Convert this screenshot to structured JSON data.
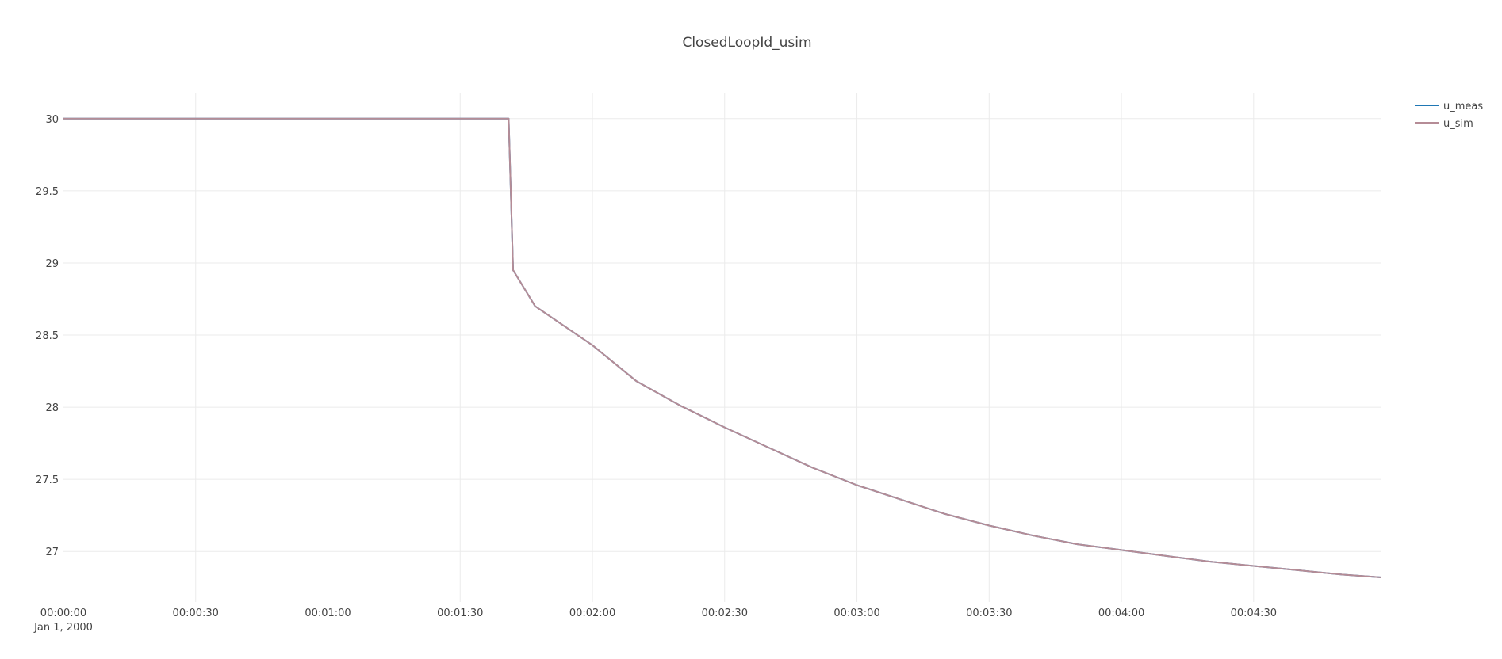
{
  "chart_data": {
    "type": "line",
    "title": "ClosedLoopId_usim",
    "xlabel": "",
    "ylabel": "",
    "x_axis_kind": "time",
    "x_tick_labels": [
      "00:00:00",
      "00:00:30",
      "00:01:00",
      "00:01:30",
      "00:02:00",
      "00:02:30",
      "00:03:00",
      "00:03:30",
      "00:04:00",
      "00:04:30"
    ],
    "x_date_label": "Jan 1, 2000",
    "y_tick_labels": [
      "30",
      "29.5",
      "29",
      "28.5",
      "28",
      "27.5",
      "27"
    ],
    "y_ticks": [
      30,
      29.5,
      29,
      28.5,
      28,
      27.5,
      27
    ],
    "xlim": [
      "00:00:00",
      "00:04:59"
    ],
    "ylim": [
      26.65,
      30.18
    ],
    "grid": true,
    "legend_position": "top-right",
    "x": [
      "00:00:00",
      "00:00:30",
      "00:01:00",
      "00:01:30",
      "00:01:41",
      "00:01:42",
      "00:01:47",
      "00:02:00",
      "00:02:10",
      "00:02:20",
      "00:02:30",
      "00:02:40",
      "00:02:50",
      "00:03:00",
      "00:03:10",
      "00:03:20",
      "00:03:30",
      "00:03:40",
      "00:03:50",
      "00:04:00",
      "00:04:10",
      "00:04:20",
      "00:04:30",
      "00:04:40",
      "00:04:50",
      "00:04:59"
    ],
    "series": [
      {
        "name": "u_meas",
        "color": "#1f77b4",
        "values": [
          30,
          30,
          30,
          30,
          30,
          28.95,
          28.7,
          28.43,
          28.18,
          28.01,
          27.86,
          27.72,
          27.58,
          27.46,
          27.36,
          27.26,
          27.18,
          27.11,
          27.05,
          27.01,
          26.97,
          26.93,
          26.9,
          26.87,
          26.84,
          26.82
        ]
      },
      {
        "name": "u_sim",
        "color": "#b58c96",
        "values": [
          30,
          30,
          30,
          30,
          30,
          28.95,
          28.7,
          28.43,
          28.18,
          28.01,
          27.86,
          27.72,
          27.58,
          27.46,
          27.36,
          27.26,
          27.18,
          27.11,
          27.05,
          27.01,
          26.97,
          26.93,
          26.9,
          26.87,
          26.84,
          26.82
        ]
      }
    ]
  }
}
